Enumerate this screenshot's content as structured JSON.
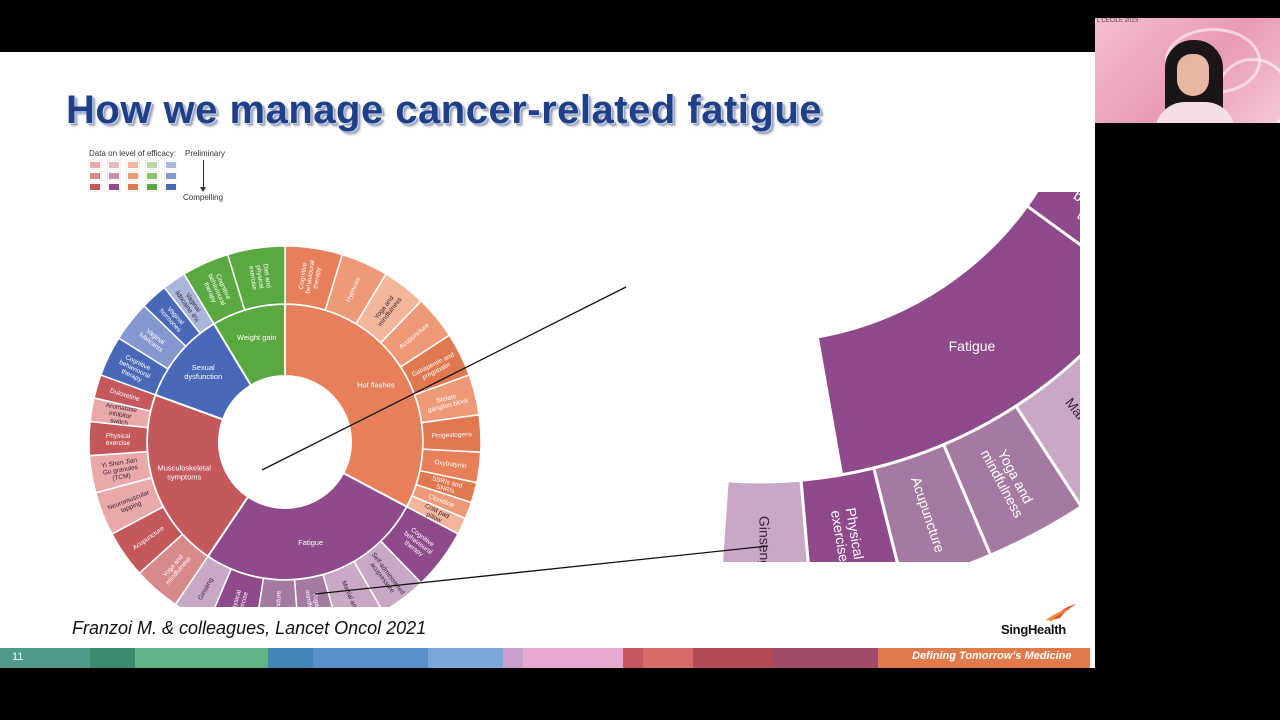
{
  "slide": {
    "title": "How we manage cancer-related fatigue",
    "citation": "Franzoi M. & colleagues, Lancet Oncol 2021",
    "page_number": "11",
    "footer_tagline": "Defining Tomorrow’s Medicine",
    "logo_text": "SingHealth"
  },
  "legend": {
    "title": "Data on level of efficacy:",
    "top_label": "Preliminary",
    "bottom_label": "Compelling",
    "colors": [
      [
        "#e9a9a9",
        "#e4b9c4",
        "#f3b69a",
        "#b9d99f",
        "#a9b7dc"
      ],
      [
        "#d88a8a",
        "#c591b2",
        "#ee9a78",
        "#8fc26f",
        "#8497cf"
      ],
      [
        "#c4585b",
        "#8e4a8a",
        "#e07850",
        "#5aa840",
        "#4a68b8"
      ]
    ]
  },
  "wheel": {
    "categories": [
      {
        "label": "Hot flashes",
        "color": "#e77f5a"
      },
      {
        "label": "Fatigue",
        "color": "#8e4a8a"
      },
      {
        "label": "Musculoskeletal symptoms",
        "color": "#c4585b"
      },
      {
        "label": "Sexual dysfunction",
        "color": "#4a68b8"
      },
      {
        "label": "Weight gain",
        "color": "#5aa840"
      }
    ],
    "outer": [
      {
        "label": "Cognitive behavioural therapy",
        "color": "#e77f5a"
      },
      {
        "label": "Hypnosis",
        "color": "#ee9a78"
      },
      {
        "label": "Yoga and mindfulness",
        "color": "#f3b69a"
      },
      {
        "label": "Acupuncture",
        "color": "#ee9a78"
      },
      {
        "label": "Gabapentin and pregabalin",
        "color": "#e07850"
      },
      {
        "label": "Stelate ganglion block",
        "color": "#ee9a78"
      },
      {
        "label": "Progestogens",
        "color": "#e07850"
      },
      {
        "label": "Oxybutynin",
        "color": "#e77f5a"
      },
      {
        "label": "SSRIs and SNRIs",
        "color": "#e07850"
      },
      {
        "label": "Clonidine",
        "color": "#ee9a78"
      },
      {
        "label": "Cold pad pillow",
        "color": "#f3b69a"
      },
      {
        "label": "Cognitive behavioural therapy",
        "color": "#8e4a8a"
      },
      {
        "label": "Self-administered acupressure",
        "color": "#c9a8c6"
      },
      {
        "label": "Martial arts",
        "color": "#c9a8c6"
      },
      {
        "label": "Yoga and mindfulness",
        "color": "#a57aa2"
      },
      {
        "label": "Acupuncture",
        "color": "#a57aa2"
      },
      {
        "label": "Physical exercise",
        "color": "#8e4a8a"
      },
      {
        "label": "Ginseng",
        "color": "#c9a8c6"
      },
      {
        "label": "Yoga and mindfulness",
        "color": "#d88a8a"
      },
      {
        "label": "Acupuncture",
        "color": "#c4585b"
      },
      {
        "label": "Neuromuscular tapping",
        "color": "#e9a9a9"
      },
      {
        "label": "Yi Shen Jian Gu granules (TCM)",
        "color": "#e9a9a9"
      },
      {
        "label": "Physical exercise",
        "color": "#c4585b"
      },
      {
        "label": "Aromatase inhibitor switch",
        "color": "#e9a9a9"
      },
      {
        "label": "Duloxetine",
        "color": "#c4585b"
      },
      {
        "label": "Cognitive behavioural therapy",
        "color": "#4a68b8"
      },
      {
        "label": "Vaginal lubricants",
        "color": "#8497cf"
      },
      {
        "label": "Vaginal hormones",
        "color": "#4a68b8"
      },
      {
        "label": "Vaginal lidocaine 4%",
        "color": "#a9b7dc"
      },
      {
        "label": "Cognitive behavioural therapy",
        "color": "#5aa840"
      },
      {
        "label": "Diet and physical exercise",
        "color": "#5aa840"
      }
    ]
  },
  "zoom": {
    "category": "Fatigue",
    "category_color": "#8e4a8a",
    "items": [
      {
        "label": "Cognitive behavioural therapy",
        "color": "#8e4a8a"
      },
      {
        "label": "Self-administered acupressure",
        "color": "#c9a8c6"
      },
      {
        "label": "Martial arts",
        "color": "#c9a8c6"
      },
      {
        "label": "Yoga and mindfulness",
        "color": "#a57aa2"
      },
      {
        "label": "Acupuncture",
        "color": "#a57aa2"
      },
      {
        "label": "Physical exercise",
        "color": "#8e4a8a"
      },
      {
        "label": "Ginseng",
        "color": "#c9a8c6"
      }
    ]
  },
  "footer_colors": [
    "#4f9a88",
    "#3b8b6e",
    "#5fb384",
    "#3f86b6",
    "#5b8fcc",
    "#7aa6dc",
    "#c9a0d0",
    "#e7a9cf",
    "#c8585f",
    "#d96a6a",
    "#b34a55",
    "#a24a6a",
    "#e07a4a"
  ],
  "webcam": {
    "title": "L’CÉCILE 2023"
  }
}
